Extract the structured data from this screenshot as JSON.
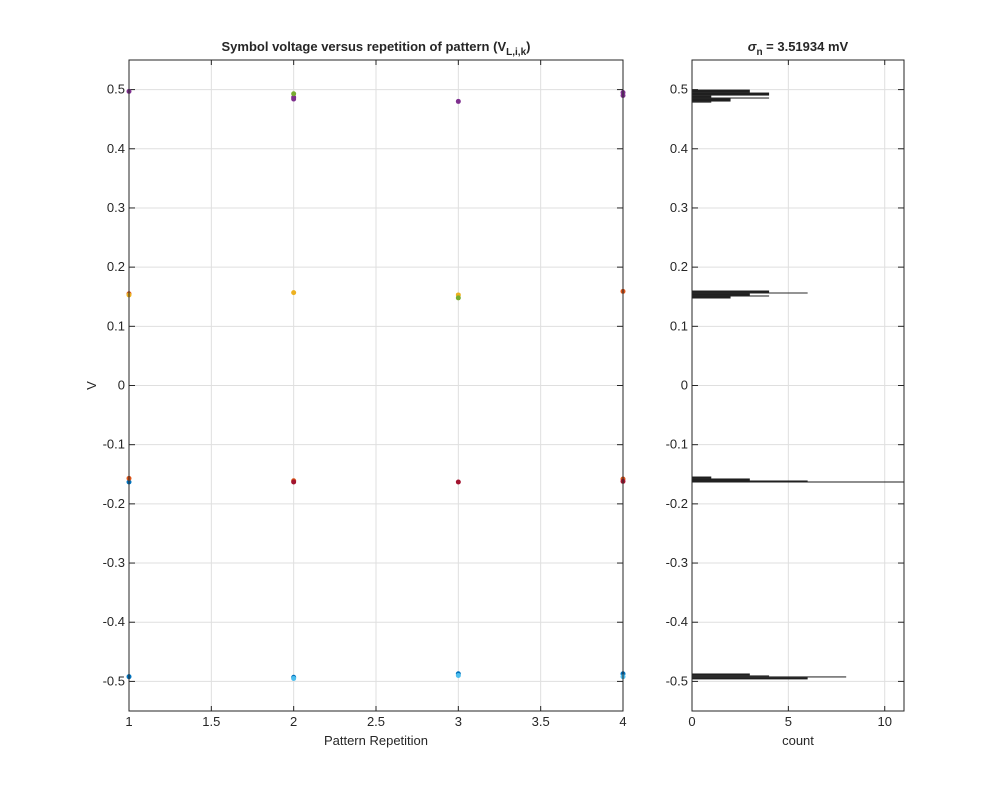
{
  "chart_data": [
    {
      "type": "scatter",
      "title": [
        {
          "text": "Symbol voltage versus repetition of pattern (V"
        },
        {
          "text": "L,i,k",
          "sub": true
        },
        {
          "text": ")"
        }
      ],
      "xlabel": "Pattern Repetition",
      "ylabel": "V",
      "xlim": [
        1,
        4
      ],
      "ylim": [
        -0.55,
        0.55
      ],
      "xticks": [
        1,
        1.5,
        2,
        2.5,
        3,
        3.5,
        4
      ],
      "yticks": [
        -0.5,
        -0.4,
        -0.3,
        -0.2,
        -0.1,
        0,
        0.1,
        0.2,
        0.3,
        0.4,
        0.5
      ],
      "grid": true,
      "series": [
        {
          "color": "#0072BD",
          "x": [
            1,
            2,
            3,
            4,
            1
          ],
          "values": [
            -0.492,
            -0.493,
            -0.487,
            -0.487,
            -0.163
          ]
        },
        {
          "color": "#D95319",
          "x": [
            1,
            2,
            4,
            1,
            4
          ],
          "values": [
            -0.157,
            -0.161,
            -0.158,
            0.155,
            0.159
          ]
        },
        {
          "color": "#EDB120",
          "x": [
            1,
            2,
            3
          ],
          "values": [
            0.153,
            0.157,
            0.153
          ]
        },
        {
          "color": "#7E2F8E",
          "x": [
            1,
            2,
            3,
            4,
            4,
            2
          ],
          "values": [
            0.497,
            0.487,
            0.48,
            0.495,
            0.49,
            0.484
          ]
        },
        {
          "color": "#77AC30",
          "x": [
            2,
            3
          ],
          "values": [
            0.493,
            0.148
          ]
        },
        {
          "color": "#4DBEEE",
          "x": [
            2,
            3,
            4
          ],
          "values": [
            -0.495,
            -0.49,
            -0.492
          ]
        },
        {
          "color": "#A2142F",
          "x": [
            2,
            3,
            4
          ],
          "values": [
            -0.163,
            -0.163,
            -0.162
          ]
        }
      ]
    },
    {
      "type": "histogram",
      "orientation": "horizontal",
      "title": [
        {
          "text": "σ",
          "italic": true
        },
        {
          "text": "n",
          "sub": true
        },
        {
          "text": " = 3.51934 mV"
        }
      ],
      "xlabel": "count",
      "xlim": [
        0,
        11
      ],
      "ylim": [
        -0.55,
        0.55
      ],
      "xticks": [
        0,
        5,
        10
      ],
      "yticks": [
        -0.5,
        -0.4,
        -0.3,
        -0.2,
        -0.1,
        0,
        0.1,
        0.2,
        0.3,
        0.4,
        0.5
      ],
      "grid": true,
      "color": "#1f1f1f",
      "bins": [
        -0.4966,
        -0.4933,
        -0.4916,
        -0.4899,
        -0.4866,
        -0.1639,
        -0.1622,
        -0.1605,
        -0.1571,
        -0.1538,
        0.147,
        0.1504,
        0.1521,
        0.1555,
        0.1571,
        0.1605,
        0.478,
        0.4798,
        0.4849,
        0.4866,
        0.4899,
        0.495,
        0.5
      ],
      "values": [
        6,
        8,
        4,
        3,
        0,
        11,
        6,
        3,
        1,
        0,
        2,
        4,
        3,
        6,
        4,
        0,
        1,
        2,
        4,
        1,
        4,
        3
      ]
    }
  ]
}
